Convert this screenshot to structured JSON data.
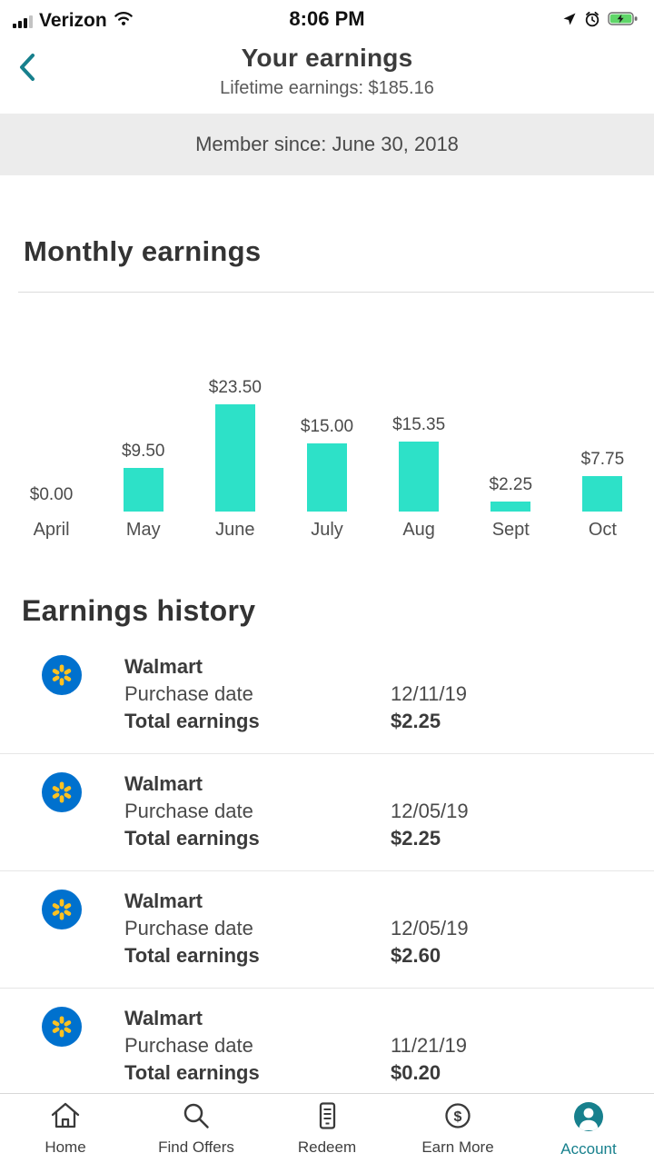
{
  "status_bar": {
    "carrier": "Verizon",
    "time": "8:06 PM"
  },
  "header": {
    "title": "Your earnings",
    "subtitle": "Lifetime earnings: $185.16"
  },
  "member_banner": {
    "text": "Member since: June 30, 2018"
  },
  "monthly": {
    "heading": "Monthly earnings"
  },
  "chart_data": {
    "type": "bar",
    "title": "Monthly earnings",
    "categories": [
      "April",
      "May",
      "June",
      "July",
      "Aug",
      "Sept",
      "Oct"
    ],
    "values": [
      0.0,
      9.5,
      23.5,
      15.0,
      15.35,
      2.25,
      7.75
    ],
    "labels": [
      "$0.00",
      "$9.50",
      "$23.50",
      "$15.00",
      "$15.35",
      "$2.25",
      "$7.75"
    ],
    "ylim": [
      0,
      23.5
    ],
    "bar_color": "#2de1c8",
    "grid": false,
    "legend": false
  },
  "history": {
    "heading": "Earnings history",
    "purchase_date_label": "Purchase date",
    "total_earnings_label": "Total earnings",
    "items": [
      {
        "merchant": "Walmart",
        "purchase_date": "12/11/19",
        "total_earnings": "$2.25"
      },
      {
        "merchant": "Walmart",
        "purchase_date": "12/05/19",
        "total_earnings": "$2.25"
      },
      {
        "merchant": "Walmart",
        "purchase_date": "12/05/19",
        "total_earnings": "$2.60"
      },
      {
        "merchant": "Walmart",
        "purchase_date": "11/21/19",
        "total_earnings": "$0.20"
      }
    ]
  },
  "tab_bar": {
    "items": [
      {
        "label": "Home",
        "active": false
      },
      {
        "label": "Find Offers",
        "active": false
      },
      {
        "label": "Redeem",
        "active": false
      },
      {
        "label": "Earn More",
        "active": false
      },
      {
        "label": "Account",
        "active": true
      }
    ]
  },
  "colors": {
    "accent_teal": "#17808d",
    "bar_turquoise": "#2de1c8",
    "walmart_blue": "#0071ce",
    "walmart_yellow": "#ffc220",
    "battery_green": "#5fd669"
  }
}
